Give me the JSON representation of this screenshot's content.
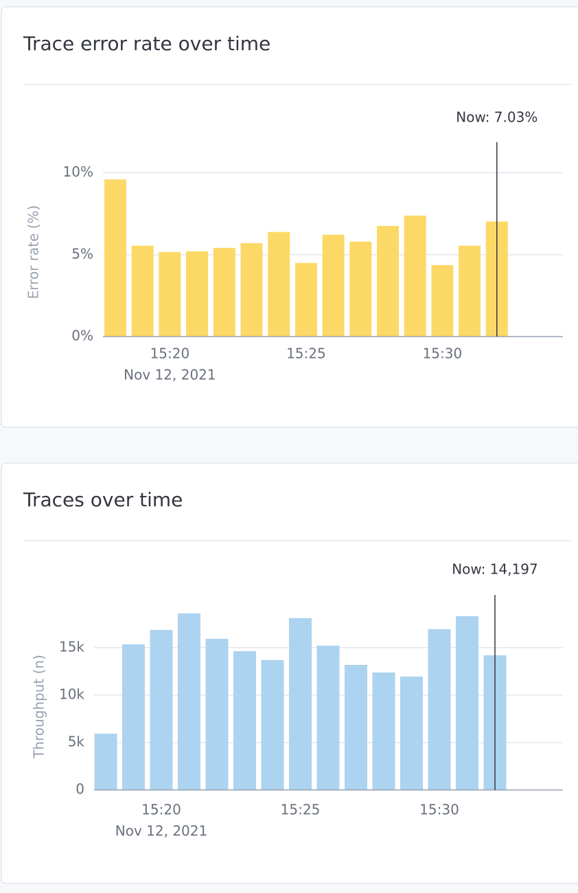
{
  "chart_data": [
    {
      "type": "bar",
      "title": "Trace error rate over time",
      "y_label": "Error rate (%)",
      "x_sublabel": "Nov 12, 2021",
      "annotation": "Now: 7.03%",
      "categories": [
        null,
        null,
        "15:20",
        null,
        null,
        null,
        null,
        "15:25",
        null,
        null,
        null,
        null,
        "15:30",
        null,
        null
      ],
      "values": [
        9.6,
        5.55,
        5.17,
        5.21,
        5.42,
        5.71,
        6.39,
        4.5,
        6.22,
        5.8,
        6.76,
        7.39,
        4.37,
        5.55,
        7.03
      ],
      "color": "#fcd966",
      "ylim": [
        0,
        12
      ],
      "yticks": [
        {
          "value": 0,
          "label": "0%"
        },
        {
          "value": 5,
          "label": "5%"
        },
        {
          "value": 10,
          "label": "10%"
        }
      ],
      "grid": true
    },
    {
      "type": "bar",
      "title": "Traces over time",
      "y_label": "Throughput (n)",
      "x_sublabel": "Nov 12, 2021",
      "annotation": "Now: 14,197",
      "categories": [
        null,
        null,
        "15:20",
        null,
        null,
        null,
        null,
        "15:25",
        null,
        null,
        null,
        null,
        "15:30",
        null,
        null
      ],
      "values": [
        5940,
        15360,
        16880,
        18620,
        15940,
        14640,
        13700,
        18120,
        15220,
        13190,
        12390,
        11960,
        16960,
        18330,
        14197
      ],
      "color": "#acd3ef",
      "ylim": [
        0,
        20500
      ],
      "yticks": [
        0,
        {
          "value": 5000,
          "label": "5k"
        },
        {
          "value": 10000,
          "label": "10k"
        },
        {
          "value": 15000,
          "label": "15k"
        }
      ],
      "grid": true
    }
  ]
}
